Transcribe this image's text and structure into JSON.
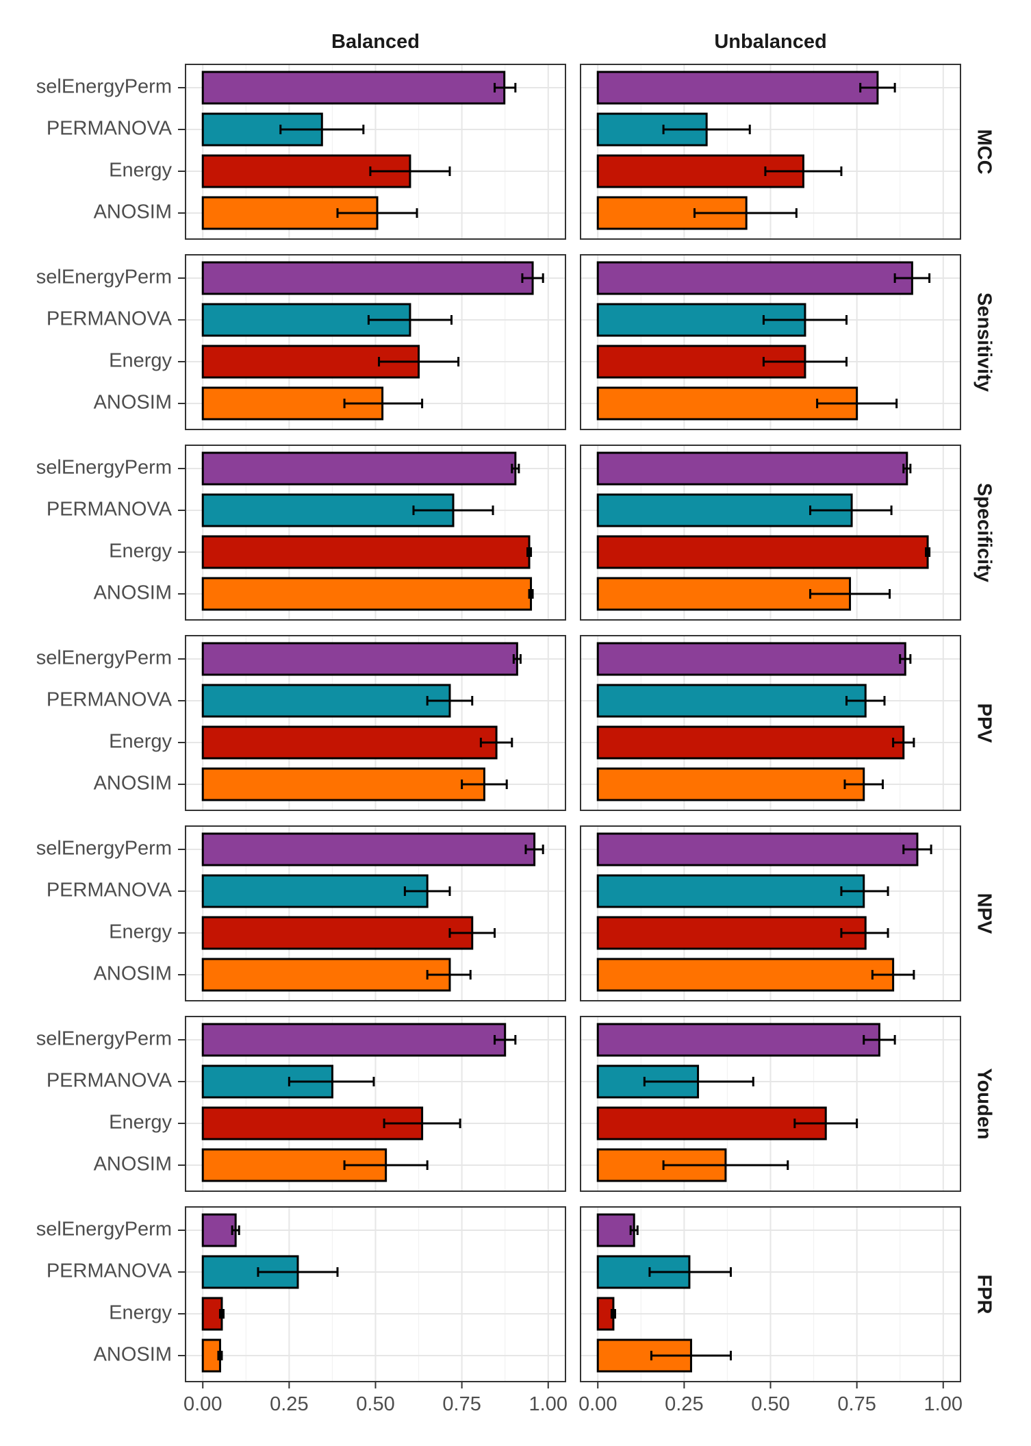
{
  "chart_data": {
    "type": "bar",
    "orientation": "horizontal",
    "facet_columns": [
      "Balanced",
      "Unbalanced"
    ],
    "facet_rows": [
      "MCC",
      "Sensitivity",
      "Specificity",
      "PPV",
      "NPV",
      "Youden",
      "FPR"
    ],
    "categories": [
      "selEnergyPerm",
      "PERMANOVA",
      "Energy",
      "ANOSIM"
    ],
    "colors": {
      "selEnergyPerm": "#8B3F98",
      "PERMANOVA": "#0E8FA3",
      "Energy": "#C41402",
      "ANOSIM": "#FF7200"
    },
    "xlim": [
      -0.05,
      1.05
    ],
    "x_ticks": [
      0,
      0.25,
      0.5,
      0.75,
      1
    ],
    "x_tick_labels": [
      "0.00",
      "0.25",
      "0.50",
      "0.75",
      "1.00"
    ],
    "error_bars": true,
    "grid": true,
    "legend": "none",
    "panels": [
      {
        "row": "MCC",
        "col": "Balanced",
        "values": [
          0.873,
          0.345,
          0.6,
          0.505
        ],
        "error_low": [
          0.845,
          0.225,
          0.485,
          0.39
        ],
        "error_high": [
          0.905,
          0.465,
          0.715,
          0.62
        ]
      },
      {
        "row": "MCC",
        "col": "Unbalanced",
        "values": [
          0.81,
          0.315,
          0.595,
          0.43
        ],
        "error_low": [
          0.76,
          0.19,
          0.485,
          0.28
        ],
        "error_high": [
          0.86,
          0.44,
          0.705,
          0.575
        ]
      },
      {
        "row": "Sensitivity",
        "col": "Balanced",
        "values": [
          0.955,
          0.6,
          0.625,
          0.52
        ],
        "error_low": [
          0.925,
          0.48,
          0.51,
          0.41
        ],
        "error_high": [
          0.985,
          0.72,
          0.74,
          0.635
        ]
      },
      {
        "row": "Sensitivity",
        "col": "Unbalanced",
        "values": [
          0.91,
          0.6,
          0.6,
          0.75
        ],
        "error_low": [
          0.86,
          0.48,
          0.48,
          0.635
        ],
        "error_high": [
          0.96,
          0.72,
          0.72,
          0.865
        ]
      },
      {
        "row": "Specificity",
        "col": "Balanced",
        "values": [
          0.905,
          0.725,
          0.945,
          0.95
        ],
        "error_low": [
          0.895,
          0.61,
          0.94,
          0.945
        ],
        "error_high": [
          0.915,
          0.84,
          0.95,
          0.955
        ]
      },
      {
        "row": "Specificity",
        "col": "Unbalanced",
        "values": [
          0.895,
          0.735,
          0.955,
          0.73
        ],
        "error_low": [
          0.885,
          0.615,
          0.95,
          0.615
        ],
        "error_high": [
          0.905,
          0.85,
          0.96,
          0.845
        ]
      },
      {
        "row": "PPV",
        "col": "Balanced",
        "values": [
          0.91,
          0.715,
          0.85,
          0.815
        ],
        "error_low": [
          0.9,
          0.65,
          0.805,
          0.75
        ],
        "error_high": [
          0.92,
          0.78,
          0.895,
          0.88
        ]
      },
      {
        "row": "PPV",
        "col": "Unbalanced",
        "values": [
          0.89,
          0.775,
          0.885,
          0.77
        ],
        "error_low": [
          0.875,
          0.72,
          0.855,
          0.715
        ],
        "error_high": [
          0.905,
          0.83,
          0.915,
          0.825
        ]
      },
      {
        "row": "NPV",
        "col": "Balanced",
        "values": [
          0.96,
          0.65,
          0.78,
          0.715
        ],
        "error_low": [
          0.935,
          0.585,
          0.715,
          0.65
        ],
        "error_high": [
          0.985,
          0.715,
          0.845,
          0.775
        ]
      },
      {
        "row": "NPV",
        "col": "Unbalanced",
        "values": [
          0.925,
          0.77,
          0.775,
          0.855
        ],
        "error_low": [
          0.885,
          0.705,
          0.705,
          0.795
        ],
        "error_high": [
          0.965,
          0.84,
          0.84,
          0.915
        ]
      },
      {
        "row": "Youden",
        "col": "Balanced",
        "values": [
          0.875,
          0.375,
          0.635,
          0.53
        ],
        "error_low": [
          0.845,
          0.25,
          0.525,
          0.41
        ],
        "error_high": [
          0.905,
          0.495,
          0.745,
          0.65
        ]
      },
      {
        "row": "Youden",
        "col": "Unbalanced",
        "values": [
          0.815,
          0.29,
          0.66,
          0.37
        ],
        "error_low": [
          0.77,
          0.135,
          0.57,
          0.19
        ],
        "error_high": [
          0.86,
          0.45,
          0.75,
          0.55
        ]
      },
      {
        "row": "FPR",
        "col": "Balanced",
        "values": [
          0.095,
          0.275,
          0.055,
          0.05
        ],
        "error_low": [
          0.085,
          0.16,
          0.05,
          0.045
        ],
        "error_high": [
          0.105,
          0.39,
          0.06,
          0.055
        ]
      },
      {
        "row": "FPR",
        "col": "Unbalanced",
        "values": [
          0.105,
          0.265,
          0.045,
          0.27
        ],
        "error_low": [
          0.095,
          0.15,
          0.04,
          0.155
        ],
        "error_high": [
          0.115,
          0.385,
          0.05,
          0.385
        ]
      }
    ]
  }
}
